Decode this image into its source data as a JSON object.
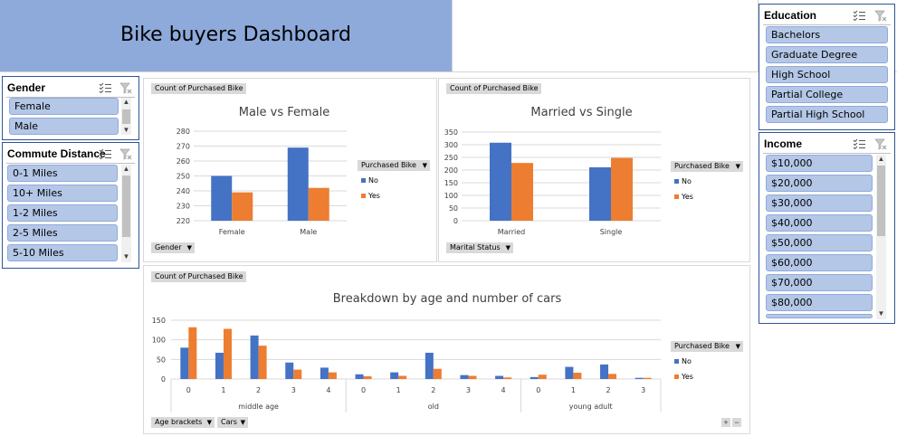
{
  "dashboard_title": "Bike buyers Dashboard",
  "colors": {
    "no": "#4472c4",
    "yes": "#ed7d31",
    "banner": "#8eaadb",
    "slicer_item": "#b4c7e7"
  },
  "icons": {
    "multi_select": "multi-select-icon",
    "clear_filter": "clear-filter-icon"
  },
  "slicers": {
    "gender": {
      "title": "Gender",
      "items": [
        "Female",
        "Male"
      ]
    },
    "commute": {
      "title": "Commute Distance",
      "items": [
        "0-1 Miles",
        "10+ Miles",
        "1-2 Miles",
        "2-5 Miles",
        "5-10 Miles"
      ]
    },
    "education": {
      "title": "Education",
      "items": [
        "Bachelors",
        "Graduate Degree",
        "High School",
        "Partial College",
        "Partial High School"
      ]
    },
    "income": {
      "title": "Income",
      "items": [
        "$10,000",
        "$20,000",
        "$30,000",
        "$40,000",
        "$50,000",
        "$60,000",
        "$70,000",
        "$80,000"
      ]
    }
  },
  "charts": {
    "gender": {
      "value_button": "Count of Purchased Bike",
      "legend_button": "Purchased Bike",
      "axis_button": "Gender"
    },
    "marital": {
      "value_button": "Count of Purchased Bike",
      "legend_button": "Purchased Bike",
      "axis_button": "Marital Status"
    },
    "age": {
      "value_button": "Count of Purchased Bike",
      "legend_button": "Purchased Bike",
      "axis_buttons": [
        "Age brackets",
        "Cars"
      ]
    }
  },
  "chart_data": [
    {
      "type": "bar",
      "title": "Male vs Female",
      "categories": [
        "Female",
        "Male"
      ],
      "series": [
        {
          "name": "No",
          "values": [
            250,
            269
          ]
        },
        {
          "name": "Yes",
          "values": [
            239,
            242
          ]
        }
      ],
      "ylim": [
        220,
        280
      ],
      "yticks": [
        "280",
        "270",
        "260",
        "250",
        "240",
        "230",
        "220"
      ],
      "grid": true,
      "legend": "right"
    },
    {
      "type": "bar",
      "title": "Married vs Single",
      "categories": [
        "Married",
        "Single"
      ],
      "series": [
        {
          "name": "No",
          "values": [
            308,
            211
          ]
        },
        {
          "name": "Yes",
          "values": [
            228,
            248
          ]
        }
      ],
      "ylim": [
        0,
        350
      ],
      "yticks": [
        "350",
        "300",
        "250",
        "200",
        "150",
        "100",
        "50",
        "0"
      ],
      "grid": true,
      "legend": "right"
    },
    {
      "type": "bar",
      "title": "Breakdown by age and number of cars",
      "groups": [
        {
          "label": "middle age",
          "categories": [
            "0",
            "1",
            "2",
            "3",
            "4"
          ]
        },
        {
          "label": "old",
          "categories": [
            "0",
            "1",
            "2",
            "3",
            "4"
          ]
        },
        {
          "label": "young adult",
          "categories": [
            "0",
            "1",
            "2",
            "3"
          ]
        }
      ],
      "series": [
        {
          "name": "No",
          "values": [
            80,
            67,
            111,
            42,
            29,
            12,
            17,
            67,
            10,
            8,
            5,
            31,
            37,
            3
          ]
        },
        {
          "name": "Yes",
          "values": [
            132,
            128,
            85,
            24,
            17,
            7,
            8,
            26,
            8,
            4,
            11,
            16,
            13,
            3
          ]
        }
      ],
      "ylim": [
        0,
        150
      ],
      "yticks": [
        "150",
        "100",
        "50",
        "0"
      ],
      "grid": true,
      "legend": "right"
    }
  ]
}
